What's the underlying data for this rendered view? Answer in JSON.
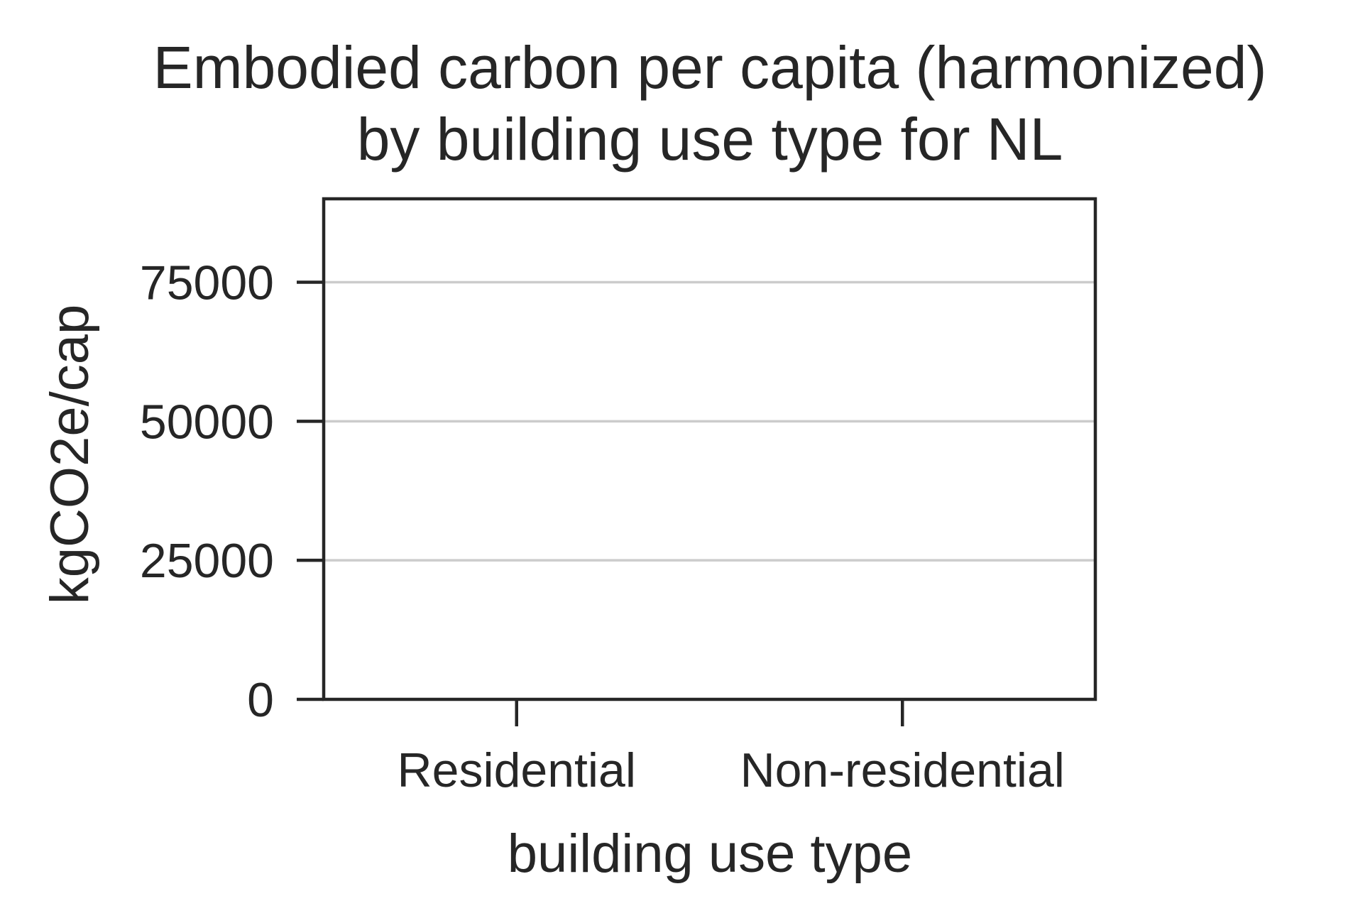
{
  "chart_data": {
    "type": "bar",
    "title_lines": [
      "Embodied carbon per capita (harmonized)",
      "by building use type for NL"
    ],
    "xlabel": "building use type",
    "ylabel": "kgCO2e/cap",
    "categories": [
      "Residential",
      "Non-residential"
    ],
    "values": [
      0,
      0
    ],
    "ylim": [
      0,
      90000
    ],
    "yticks": [
      0,
      25000,
      50000,
      75000
    ],
    "ytick_labels": [
      "0",
      "25000",
      "50000",
      "75000"
    ],
    "grid": "horizontal",
    "colors": {
      "text": "#262626",
      "axis": "#262626",
      "grid": "#cccccc",
      "bar": "#4c72b0"
    }
  }
}
